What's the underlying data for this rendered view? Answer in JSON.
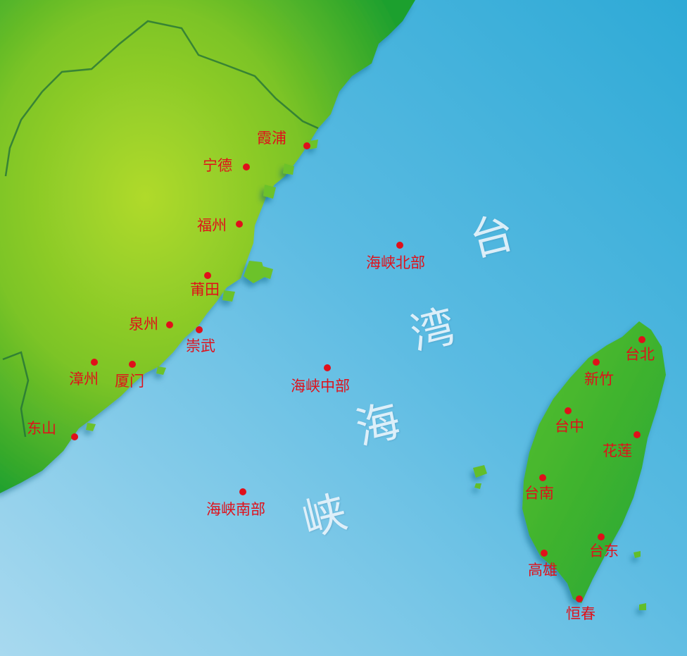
{
  "colors": {
    "land_light": "#a6d62a",
    "land_dark": "#18a02e",
    "sea_deep": "#2eaad6",
    "sea_light": "#a4d6ee",
    "marker": "#e0101a",
    "label": "#e0101a",
    "strait_text": "#eaf5fc"
  },
  "strait_name": [
    "台",
    "湾",
    "海",
    "峡"
  ],
  "fujian_cities": [
    {
      "name": "霞浦"
    },
    {
      "name": "宁德"
    },
    {
      "name": "福州"
    },
    {
      "name": "莆田"
    },
    {
      "name": "泉州"
    },
    {
      "name": "崇武"
    },
    {
      "name": "漳州"
    },
    {
      "name": "厦门"
    },
    {
      "name": "东山"
    }
  ],
  "strait_zones": [
    {
      "name": "海峡北部"
    },
    {
      "name": "海峡中部"
    },
    {
      "name": "海峡南部"
    }
  ],
  "taiwan_cities": [
    {
      "name": "台北"
    },
    {
      "name": "新竹"
    },
    {
      "name": "台中"
    },
    {
      "name": "花莲"
    },
    {
      "name": "台南"
    },
    {
      "name": "台东"
    },
    {
      "name": "高雄"
    },
    {
      "name": "恒春"
    }
  ],
  "icons": {
    "marker": "red-dot-marker"
  }
}
